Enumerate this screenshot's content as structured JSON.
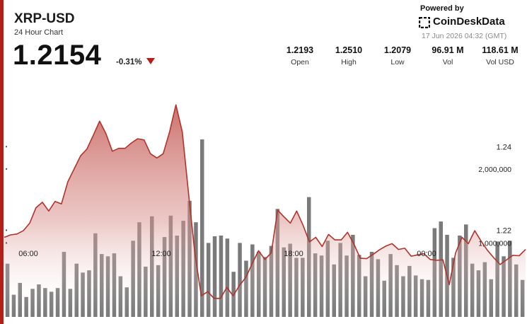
{
  "header": {
    "symbol": "XRP-USD",
    "subtitle": "24 Hour Chart",
    "price": "1.2154",
    "change": "-0.31%"
  },
  "brand": {
    "powered_by": "Powered by",
    "name": "CoinDeskData",
    "timestamp": "17 Jun 2026 04:32 (GMT)",
    "icon": "coindesk-logo-icon"
  },
  "stats": [
    {
      "value": "1.2193",
      "label": "Open"
    },
    {
      "value": "1.2510",
      "label": "High"
    },
    {
      "value": "1.2079",
      "label": "Low"
    },
    {
      "value": "96.91 M",
      "label": "Vol"
    },
    {
      "value": "118.61 M",
      "label": "Vol USD"
    }
  ],
  "colors": {
    "accent": "#b51f1a",
    "line": "#b3322a",
    "area_top": "#c0504a",
    "volume_bars": "#6f6f6f",
    "change_down": "#b51f1a"
  },
  "chart_data": [
    {
      "type": "area",
      "series": [
        {
          "values": [
            1.2183,
            1.2189,
            1.2191,
            1.2199,
            1.2217,
            1.2254,
            1.2267,
            1.2246,
            1.2269,
            1.2263,
            1.2316,
            1.2347,
            1.2378,
            1.2394,
            1.2427,
            1.2461,
            1.2431,
            1.2389,
            1.2396,
            1.2396,
            1.2409,
            1.2419,
            1.2416,
            1.2383,
            1.2373,
            1.2383,
            1.2435,
            1.25,
            1.2435,
            1.2287,
            1.2143,
            1.2043,
            1.2053,
            1.2037,
            1.2037,
            1.2063,
            1.2043,
            1.2068,
            1.2087,
            1.212,
            1.2151,
            1.213,
            1.2146,
            1.2248,
            1.2232,
            1.2217,
            1.2246,
            1.2212,
            1.2172,
            1.2183,
            1.2161,
            1.219,
            1.2177,
            1.2177,
            1.2195,
            1.2167,
            1.2133,
            1.2132,
            1.2142,
            1.2153,
            1.2162,
            1.2168,
            1.2154,
            1.2157,
            1.2138,
            1.2141,
            1.2144,
            1.213,
            1.2128,
            1.2129,
            1.207,
            1.2146,
            1.2183,
            1.2168,
            1.2199,
            1.2174,
            1.2152,
            1.2134,
            1.2118,
            1.2129,
            1.214,
            1.2139,
            1.2154
          ]
        }
      ],
      "y_ticks": [
        1.22,
        1.24
      ],
      "ylim": [
        1.204,
        1.2585
      ],
      "x_ticks": [
        "06:00",
        "12:00",
        "18:00",
        "00:00"
      ],
      "grid": false
    },
    {
      "type": "bar",
      "series": [
        {
          "values": [
            720000,
            300000,
            460000,
            270000,
            380000,
            440000,
            390000,
            340000,
            390000,
            880000,
            380000,
            720000,
            600000,
            630000,
            1130000,
            850000,
            820000,
            860000,
            550000,
            400000,
            1030000,
            1280000,
            680000,
            1360000,
            700000,
            1080000,
            1370000,
            1100000,
            1300000,
            1570000,
            1280000,
            2400000,
            1000000,
            1090000,
            1100000,
            1060000,
            610000,
            1000000,
            760000,
            980000,
            880000,
            810000,
            960000,
            1460000,
            940000,
            990000,
            800000,
            800000,
            1620000,
            860000,
            830000,
            1030000,
            710000,
            1000000,
            830000,
            1110000,
            840000,
            550000,
            880000,
            780000,
            490000,
            850000,
            700000,
            550000,
            690000,
            560000,
            510000,
            500000,
            1200000,
            1290000,
            1110000,
            800000,
            1100000,
            1250000,
            720000,
            630000,
            740000,
            510000,
            1020000,
            820000,
            1030000,
            710000,
            500000
          ]
        }
      ],
      "y_ticks": [
        1000000,
        2000000
      ],
      "y_tick_labels": [
        "1,000,000",
        "2,000,000"
      ],
      "ylim": [
        0,
        2850000
      ],
      "x_ticks": [
        "06:00",
        "12:00",
        "18:00",
        "00:00"
      ],
      "grid": false
    }
  ]
}
